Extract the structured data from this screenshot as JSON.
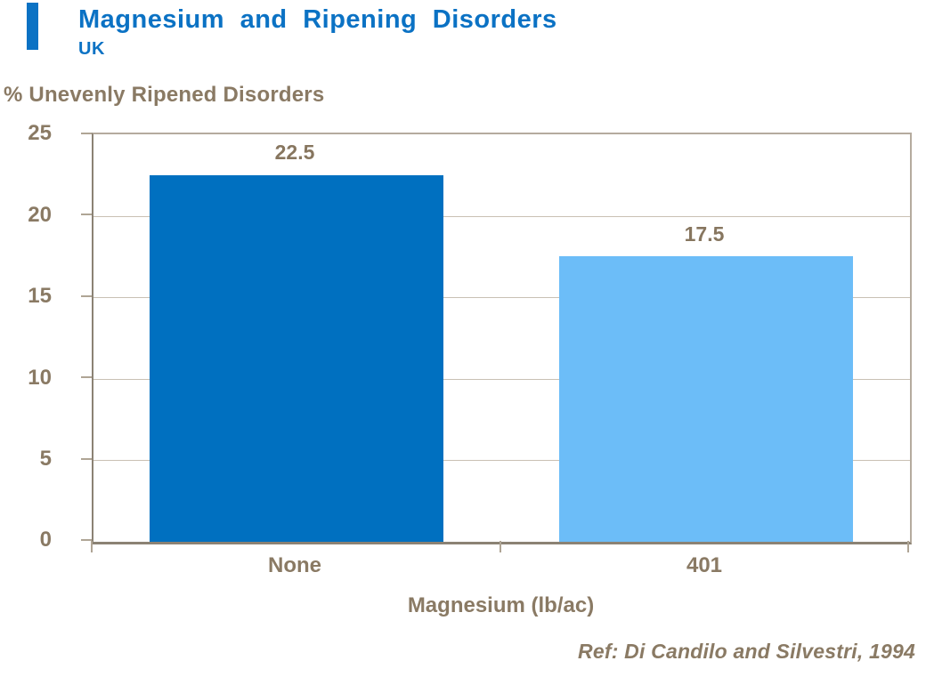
{
  "slide": {
    "title": "Magnesium and Ripening Disorders",
    "subtitle": "UK",
    "reference": "Ref: Di Candilo and Silvestri, 1994"
  },
  "chart_data": {
    "type": "bar",
    "title": "Magnesium and Ripening Disorders",
    "subtitle": "UK",
    "ylabel": "% Unevenly Ripened Disorders",
    "xlabel": "Magnesium (lb/ac)",
    "categories": [
      "None",
      "401"
    ],
    "values": [
      22.5,
      17.5
    ],
    "value_labels": [
      "22.5",
      "17.5"
    ],
    "bar_colors": [
      "#0070C0",
      "#6CBDF8"
    ],
    "ylim": [
      0,
      25
    ],
    "yticks": [
      0,
      5,
      10,
      15,
      20,
      25
    ],
    "grid": true,
    "legend_position": "none"
  },
  "colors": {
    "title_blue": "#0B72C4",
    "bar_dark_blue": "#0070C0",
    "bar_light_blue": "#6CBDF8",
    "text_brown": "#8A7A64",
    "axis_line": "#8B8274",
    "gridline": "#C9C0B4",
    "plot_border": "#B5AB9E"
  }
}
